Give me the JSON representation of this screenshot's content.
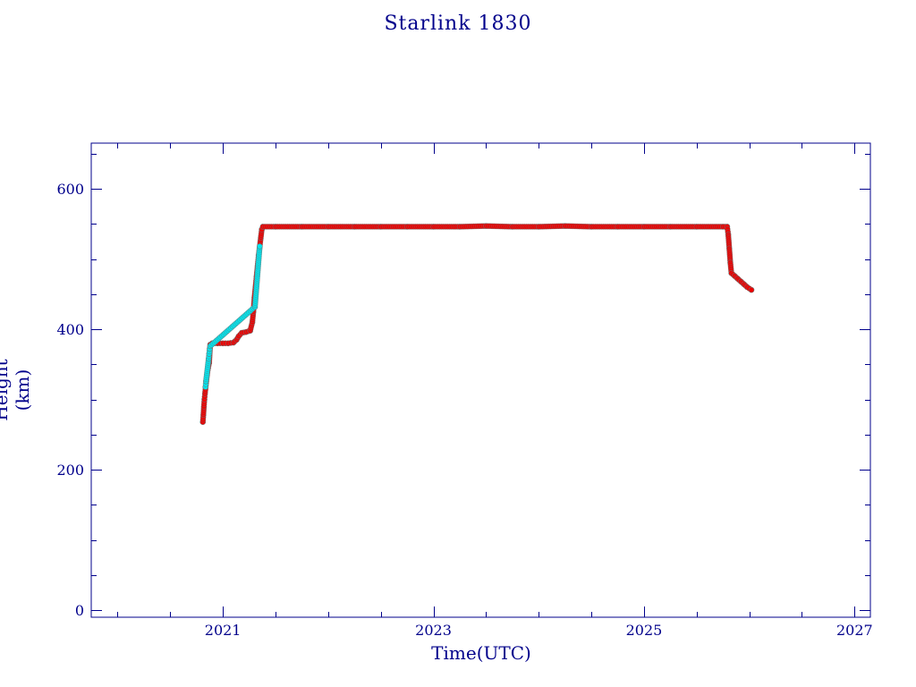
{
  "chart_data": {
    "type": "scatter",
    "title": "Starlink 1830",
    "xlabel": "Time(UTC)",
    "ylabel": "Height (km)",
    "xlim": [
      2019.75,
      2027.15
    ],
    "ylim": [
      -10,
      665
    ],
    "xticks": [
      2021,
      2023,
      2025,
      2027
    ],
    "xtick_labels": [
      "2021",
      "2023",
      "2025",
      "2027"
    ],
    "yticks": [
      0,
      200,
      400,
      600
    ],
    "ytick_labels": [
      "0",
      "200",
      "400",
      "600"
    ],
    "grid": false,
    "legend": "none",
    "colors": {
      "axes": "#00008b",
      "main": "#ee0000",
      "secondary": "#00e5ee",
      "edge": "#707070"
    },
    "series": [
      {
        "color": "#ee0000",
        "points": [
          [
            2020.81,
            268
          ],
          [
            2020.815,
            278
          ],
          [
            2020.82,
            290
          ],
          [
            2020.825,
            300
          ],
          [
            2020.83,
            308
          ],
          [
            2020.85,
            335
          ],
          [
            2020.86,
            345
          ],
          [
            2020.87,
            352
          ],
          [
            2020.88,
            378
          ],
          [
            2020.9,
            380
          ],
          [
            2020.95,
            380
          ],
          [
            2021.0,
            380
          ],
          [
            2021.05,
            380
          ],
          [
            2021.1,
            381
          ],
          [
            2021.13,
            385
          ],
          [
            2021.15,
            390
          ],
          [
            2021.18,
            395
          ],
          [
            2021.22,
            396
          ],
          [
            2021.26,
            398
          ],
          [
            2021.28,
            410
          ],
          [
            2021.29,
            425
          ],
          [
            2021.3,
            445
          ],
          [
            2021.31,
            460
          ],
          [
            2021.32,
            475
          ],
          [
            2021.33,
            490
          ],
          [
            2021.34,
            505
          ],
          [
            2021.36,
            530
          ],
          [
            2021.37,
            542
          ],
          [
            2021.38,
            546
          ],
          [
            2021.5,
            546
          ],
          [
            2021.75,
            546
          ],
          [
            2022.0,
            546
          ],
          [
            2022.25,
            546
          ],
          [
            2022.5,
            546
          ],
          [
            2022.75,
            546
          ],
          [
            2023.0,
            546
          ],
          [
            2023.25,
            546
          ],
          [
            2023.5,
            547
          ],
          [
            2023.75,
            546
          ],
          [
            2024.0,
            546
          ],
          [
            2024.25,
            547
          ],
          [
            2024.5,
            546
          ],
          [
            2024.75,
            546
          ],
          [
            2025.0,
            546
          ],
          [
            2025.25,
            546
          ],
          [
            2025.5,
            546
          ],
          [
            2025.75,
            546
          ],
          [
            2025.79,
            546
          ],
          [
            2025.8,
            535
          ],
          [
            2025.81,
            515
          ],
          [
            2025.82,
            495
          ],
          [
            2025.83,
            480
          ],
          [
            2025.86,
            476
          ],
          [
            2025.89,
            472
          ],
          [
            2025.92,
            468
          ],
          [
            2025.95,
            464
          ],
          [
            2025.98,
            460
          ],
          [
            2026.02,
            456
          ]
        ]
      },
      {
        "color": "#00e5ee",
        "points": [
          [
            2020.835,
            318
          ],
          [
            2020.84,
            326
          ],
          [
            2020.865,
            358
          ],
          [
            2020.87,
            365
          ],
          [
            2020.875,
            372
          ],
          [
            2020.88,
            376
          ],
          [
            2021.305,
            432
          ],
          [
            2021.35,
            518
          ]
        ]
      }
    ]
  }
}
